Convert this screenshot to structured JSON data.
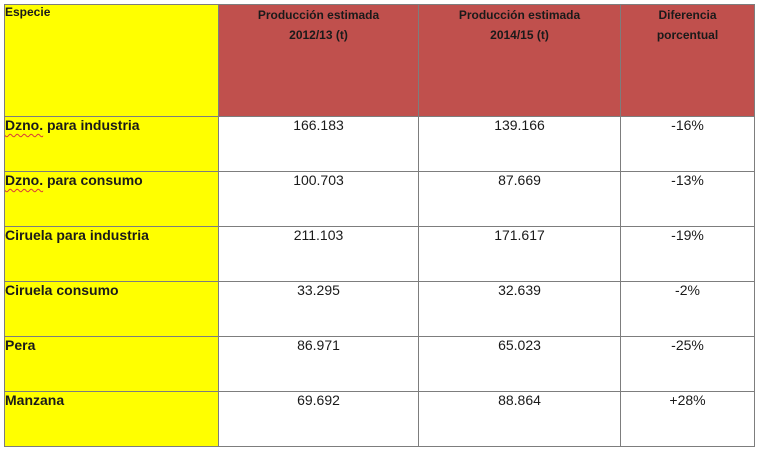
{
  "table": {
    "headers": {
      "species": "Especie",
      "prod_2012_line1": "Producción estimada",
      "prod_2012_line2": "2012/13 (t)",
      "prod_2014_line1": "Producción estimada",
      "prod_2014_line2": "2014/15 (t)",
      "diff_line1": "Diferencia",
      "diff_line2": "porcentual"
    },
    "rows": [
      {
        "abbr": "Dzno.",
        "rest": " para industria",
        "prod_2012": "166.183",
        "prod_2014": "139.166",
        "diff": "-16%"
      },
      {
        "abbr": "Dzno.",
        "rest": " para consumo",
        "prod_2012": "100.703",
        "prod_2014": "87.669",
        "diff": "-13%"
      },
      {
        "abbr": "",
        "rest": "Ciruela para industria",
        "prod_2012": "211.103",
        "prod_2014": "171.617",
        "diff": "-19%"
      },
      {
        "abbr": "",
        "rest": "Ciruela consumo",
        "prod_2012": "33.295",
        "prod_2014": "32.639",
        "diff": "-2%"
      },
      {
        "abbr": "",
        "rest": "Pera",
        "prod_2012": "86.971",
        "prod_2014": "65.023",
        "diff": "-25%"
      },
      {
        "abbr": "",
        "rest": "Manzana",
        "prod_2012": "69.692",
        "prod_2014": "88.864",
        "diff": "+28%"
      }
    ]
  },
  "colors": {
    "species_fill": "#ffff00",
    "header_fill": "#c0504d",
    "grid_line": "#7d7d7d",
    "spellcheck_underline": "#d83a3a"
  }
}
